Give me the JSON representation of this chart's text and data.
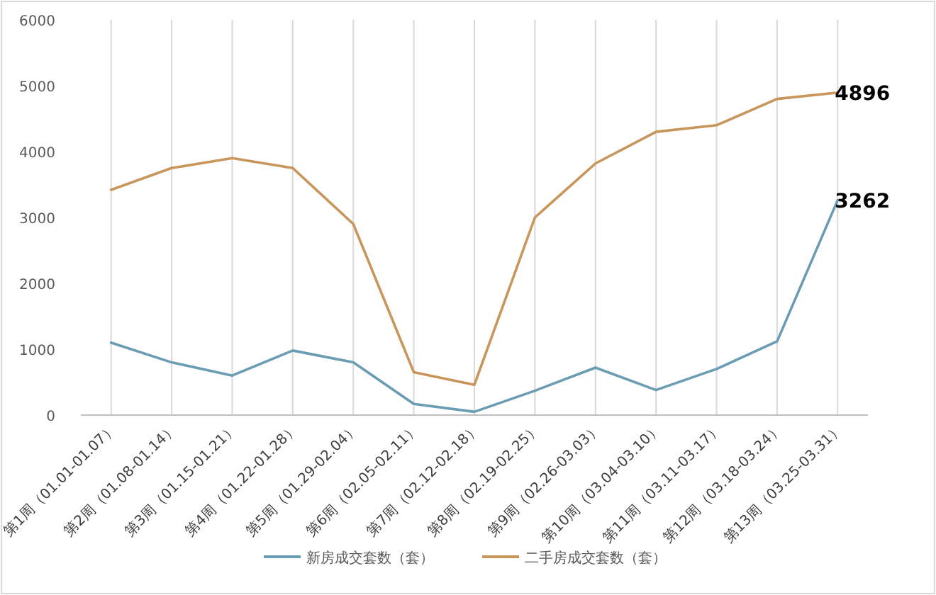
{
  "chart_data": {
    "type": "line",
    "categories": [
      "第1周（01.01-01.07）",
      "第2周（01.08-01.14）",
      "第3周（01.15-01.21）",
      "第4周（01.22-01.28）",
      "第5周（01.29-02.04）",
      "第6周（02.05-02.11）",
      "第7周（02.12-02.18）",
      "第8周（02.19-02.25）",
      "第9周（02.26-03.03）",
      "第10周（03.04-03.10）",
      "第11周（03.11-03.17）",
      "第12周（03.18-03.24）",
      "第13周（03.25-03.31）"
    ],
    "series": [
      {
        "name": "新房成交套数（套）",
        "color": "#6a9db3",
        "values": [
          1100,
          800,
          600,
          980,
          800,
          170,
          50,
          370,
          720,
          380,
          700,
          1120,
          3262
        ],
        "value_labels": [
          null,
          null,
          null,
          null,
          null,
          null,
          null,
          null,
          null,
          null,
          null,
          null,
          "3262"
        ]
      },
      {
        "name": "二手房成交套数（套）",
        "color": "#c8955a",
        "values": [
          3420,
          3750,
          3900,
          3750,
          2900,
          650,
          460,
          3000,
          3820,
          4300,
          4400,
          4800,
          4896
        ],
        "value_labels": [
          null,
          null,
          null,
          null,
          null,
          null,
          null,
          null,
          null,
          null,
          null,
          null,
          "4896"
        ]
      }
    ],
    "ylim": [
      0,
      6000
    ],
    "yticks": [
      0,
      1000,
      2000,
      3000,
      4000,
      5000,
      6000
    ],
    "grid": "x",
    "legend": "bottom",
    "marker": "none",
    "line_style": "solid"
  }
}
